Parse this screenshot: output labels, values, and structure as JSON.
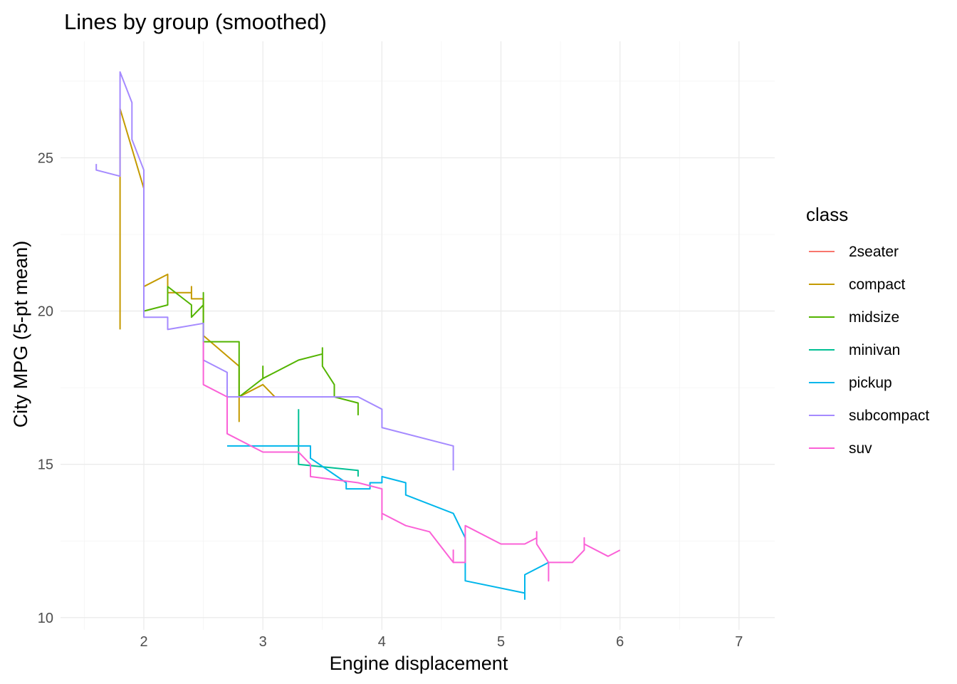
{
  "chart_data": {
    "type": "line",
    "title": "Lines by group (smoothed)",
    "xlabel": "Engine displacement",
    "ylabel": "City MPG (5-pt mean)",
    "xlim": [
      1.3,
      7.3
    ],
    "ylim": [
      9.6,
      28.8
    ],
    "x_ticks": [
      2,
      3,
      4,
      5,
      6,
      7
    ],
    "y_ticks": [
      10,
      15,
      20,
      25
    ],
    "grid": true,
    "legend": {
      "title": "class",
      "position": "right"
    },
    "series": [
      {
        "name": "2seater",
        "color": "#F8766D",
        "points": []
      },
      {
        "name": "compact",
        "color": "#C49A00",
        "points": [
          [
            1.8,
            19.4
          ],
          [
            1.8,
            26.6
          ],
          [
            2.0,
            24.0
          ],
          [
            2.0,
            20.8
          ],
          [
            2.2,
            21.2
          ],
          [
            2.2,
            20.6
          ],
          [
            2.4,
            20.6
          ],
          [
            2.4,
            20.8
          ],
          [
            2.4,
            20.4
          ],
          [
            2.5,
            20.4
          ],
          [
            2.5,
            19.2
          ],
          [
            2.8,
            18.2
          ],
          [
            2.8,
            16.4
          ],
          [
            2.8,
            17.2
          ],
          [
            3.0,
            17.6
          ],
          [
            3.1,
            17.2
          ]
        ]
      },
      {
        "name": "midsize",
        "color": "#53B400",
        "points": [
          [
            2.0,
            20.0
          ],
          [
            2.2,
            20.2
          ],
          [
            2.2,
            20.8
          ],
          [
            2.4,
            20.2
          ],
          [
            2.4,
            19.8
          ],
          [
            2.5,
            20.2
          ],
          [
            2.5,
            20.6
          ],
          [
            2.5,
            19.0
          ],
          [
            2.8,
            19.0
          ],
          [
            2.8,
            17.2
          ],
          [
            3.0,
            17.8
          ],
          [
            3.0,
            18.2
          ],
          [
            3.0,
            17.8
          ],
          [
            3.1,
            18.0
          ],
          [
            3.3,
            18.4
          ],
          [
            3.5,
            18.6
          ],
          [
            3.5,
            18.8
          ],
          [
            3.5,
            18.2
          ],
          [
            3.6,
            17.6
          ],
          [
            3.6,
            17.2
          ],
          [
            3.8,
            17.0
          ],
          [
            3.8,
            16.6
          ]
        ]
      },
      {
        "name": "minivan",
        "color": "#00C094",
        "points": [
          [
            3.3,
            16.8
          ],
          [
            3.3,
            15.0
          ],
          [
            3.8,
            14.8
          ],
          [
            3.8,
            14.6
          ]
        ]
      },
      {
        "name": "pickup",
        "color": "#00B6EB",
        "points": [
          [
            2.7,
            15.6
          ],
          [
            3.4,
            15.6
          ],
          [
            3.4,
            15.2
          ],
          [
            3.7,
            14.4
          ],
          [
            3.7,
            14.2
          ],
          [
            3.9,
            14.2
          ],
          [
            3.9,
            14.4
          ],
          [
            4.0,
            14.4
          ],
          [
            4.0,
            14.6
          ],
          [
            4.2,
            14.4
          ],
          [
            4.2,
            14.0
          ],
          [
            4.6,
            13.4
          ],
          [
            4.7,
            12.6
          ],
          [
            4.7,
            11.2
          ],
          [
            5.2,
            10.8
          ],
          [
            5.2,
            10.6
          ],
          [
            5.2,
            11.4
          ],
          [
            5.4,
            11.8
          ]
        ]
      },
      {
        "name": "subcompact",
        "color": "#A58AFF",
        "points": [
          [
            1.6,
            24.8
          ],
          [
            1.6,
            24.6
          ],
          [
            1.8,
            24.4
          ],
          [
            1.8,
            27.8
          ],
          [
            1.9,
            26.8
          ],
          [
            1.9,
            25.6
          ],
          [
            2.0,
            24.6
          ],
          [
            2.0,
            19.8
          ],
          [
            2.2,
            19.8
          ],
          [
            2.2,
            19.4
          ],
          [
            2.5,
            19.6
          ],
          [
            2.5,
            18.4
          ],
          [
            2.7,
            18.0
          ],
          [
            2.7,
            17.2
          ],
          [
            3.8,
            17.2
          ],
          [
            4.0,
            16.8
          ],
          [
            4.0,
            16.2
          ],
          [
            4.6,
            15.6
          ],
          [
            4.6,
            14.8
          ]
        ]
      },
      {
        "name": "suv",
        "color": "#FB61D7",
        "points": [
          [
            2.5,
            19.0
          ],
          [
            2.5,
            17.6
          ],
          [
            2.7,
            17.2
          ],
          [
            2.7,
            16.0
          ],
          [
            3.0,
            15.4
          ],
          [
            3.3,
            15.4
          ],
          [
            3.4,
            15.0
          ],
          [
            3.4,
            14.6
          ],
          [
            3.8,
            14.4
          ],
          [
            4.0,
            14.2
          ],
          [
            4.0,
            13.2
          ],
          [
            4.0,
            13.4
          ],
          [
            4.2,
            13.0
          ],
          [
            4.4,
            12.8
          ],
          [
            4.6,
            11.8
          ],
          [
            4.6,
            12.2
          ],
          [
            4.6,
            11.8
          ],
          [
            4.7,
            11.8
          ],
          [
            4.7,
            13.0
          ],
          [
            5.0,
            12.4
          ],
          [
            5.2,
            12.4
          ],
          [
            5.3,
            12.6
          ],
          [
            5.3,
            12.8
          ],
          [
            5.3,
            12.4
          ],
          [
            5.4,
            11.8
          ],
          [
            5.4,
            11.2
          ],
          [
            5.4,
            11.8
          ],
          [
            5.6,
            11.8
          ],
          [
            5.7,
            12.2
          ],
          [
            5.7,
            12.6
          ],
          [
            5.7,
            12.4
          ],
          [
            5.9,
            12.0
          ],
          [
            6.0,
            12.2
          ]
        ]
      }
    ]
  }
}
